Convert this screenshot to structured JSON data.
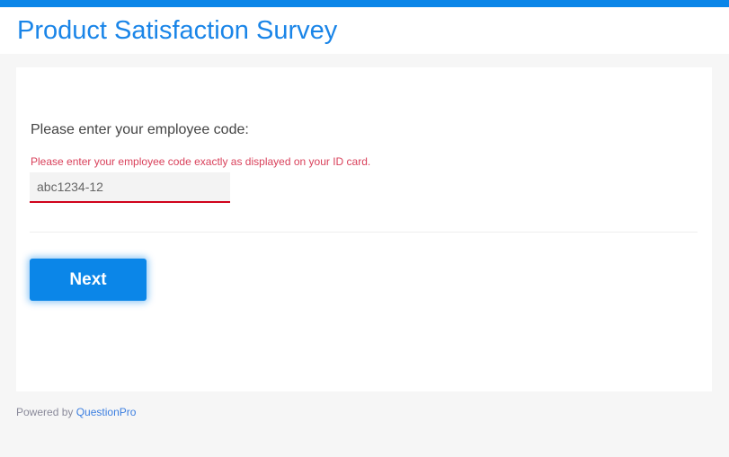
{
  "colors": {
    "accent": "#0b86e8",
    "error": "#d0021b"
  },
  "header": {
    "title": "Product Satisfaction Survey"
  },
  "question": {
    "label": "Please enter your employee code:",
    "error": "Please enter your employee code exactly as displayed on your ID card.",
    "value": "abc1234-12"
  },
  "actions": {
    "next_label": "Next"
  },
  "footer": {
    "powered_by": "Powered by",
    "brand": "QuestionPro"
  }
}
